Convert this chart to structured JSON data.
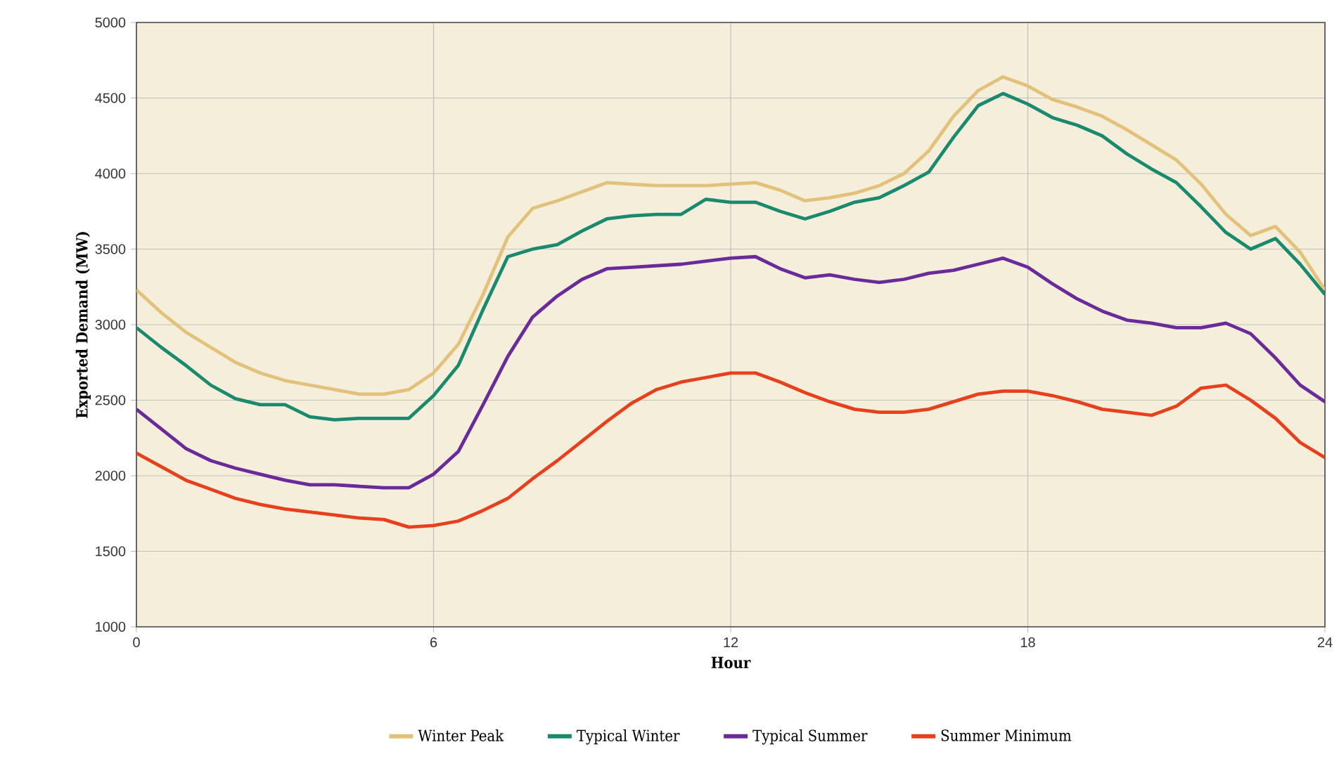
{
  "chart_data": {
    "type": "line",
    "xlabel": "Hour",
    "ylabel": "Exported Demand (MW)",
    "x": [
      0,
      0.5,
      1,
      1.5,
      2,
      2.5,
      3,
      3.5,
      4,
      4.5,
      5,
      5.5,
      6,
      6.5,
      7,
      7.5,
      8,
      8.5,
      9,
      9.5,
      10,
      10.5,
      11,
      11.5,
      12,
      12.5,
      13,
      13.5,
      14,
      14.5,
      15,
      15.5,
      16,
      16.5,
      17,
      17.5,
      18,
      18.5,
      19,
      19.5,
      20,
      20.5,
      21,
      21.5,
      22,
      22.5,
      23,
      23.5,
      24
    ],
    "series": [
      {
        "name": "Winter Peak",
        "color": "#e2c17a",
        "values": [
          3230,
          3080,
          2950,
          2850,
          2750,
          2680,
          2630,
          2600,
          2570,
          2540,
          2540,
          2570,
          2680,
          2870,
          3200,
          3580,
          3770,
          3820,
          3880,
          3940,
          3930,
          3920,
          3920,
          3920,
          3930,
          3940,
          3890,
          3820,
          3840,
          3870,
          3920,
          4000,
          4150,
          4380,
          4550,
          4640,
          4580,
          4490,
          4440,
          4380,
          4290,
          4190,
          4090,
          3930,
          3730,
          3590,
          3650,
          3480,
          3230
        ]
      },
      {
        "name": "Typical Winter",
        "color": "#1a8a6e",
        "values": [
          2980,
          2850,
          2730,
          2600,
          2510,
          2470,
          2470,
          2390,
          2370,
          2380,
          2380,
          2380,
          2530,
          2730,
          3100,
          3450,
          3500,
          3530,
          3620,
          3700,
          3720,
          3730,
          3730,
          3830,
          3810,
          3810,
          3750,
          3700,
          3750,
          3810,
          3840,
          3920,
          4010,
          4240,
          4450,
          4530,
          4460,
          4370,
          4320,
          4250,
          4130,
          4030,
          3940,
          3780,
          3610,
          3500,
          3570,
          3400,
          3200
        ]
      },
      {
        "name": "Typical Summer",
        "color": "#6a2a9a",
        "values": [
          2440,
          2310,
          2180,
          2100,
          2050,
          2010,
          1970,
          1940,
          1940,
          1930,
          1920,
          1920,
          2010,
          2160,
          2470,
          2790,
          3050,
          3190,
          3300,
          3370,
          3380,
          3390,
          3400,
          3420,
          3440,
          3450,
          3370,
          3310,
          3330,
          3300,
          3280,
          3300,
          3340,
          3360,
          3400,
          3440,
          3380,
          3270,
          3170,
          3090,
          3030,
          3010,
          2980,
          2980,
          3010,
          2940,
          2780,
          2600,
          2490
        ]
      },
      {
        "name": "Summer Minimum",
        "color": "#e8401c",
        "values": [
          2150,
          2060,
          1970,
          1910,
          1850,
          1810,
          1780,
          1760,
          1740,
          1720,
          1710,
          1660,
          1670,
          1700,
          1770,
          1850,
          1980,
          2100,
          2230,
          2360,
          2480,
          2570,
          2620,
          2650,
          2680,
          2680,
          2620,
          2550,
          2490,
          2440,
          2420,
          2420,
          2440,
          2490,
          2540,
          2560,
          2560,
          2530,
          2490,
          2440,
          2420,
          2400,
          2460,
          2580,
          2600,
          2500,
          2380,
          2220,
          2120
        ]
      }
    ],
    "xlim": [
      0,
      24
    ],
    "xticks": [
      0,
      6,
      12,
      18,
      24
    ],
    "ylim": [
      1000,
      5000
    ],
    "yticks": [
      1000,
      1500,
      2000,
      2500,
      3000,
      3500,
      4000,
      4500,
      5000
    ],
    "grid": true,
    "legend": "bottom",
    "marker": "none",
    "line_style": "solid"
  }
}
